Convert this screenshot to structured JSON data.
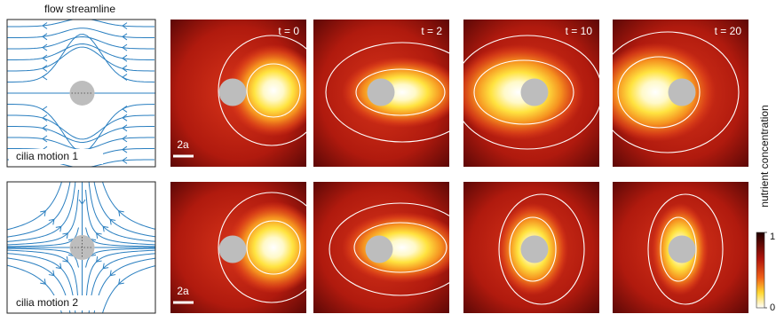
{
  "header": {
    "title": "flow streamline"
  },
  "rows": [
    {
      "label": "cilia motion 1",
      "scale_label": "2a"
    },
    {
      "label": "cilia motion 2",
      "scale_label": "2a"
    }
  ],
  "time_labels": [
    "t = 0",
    "t = 2",
    "t = 10",
    "t = 20"
  ],
  "colorbar": {
    "label": "nutrient concentration",
    "ticks": [
      0,
      1
    ]
  }
}
